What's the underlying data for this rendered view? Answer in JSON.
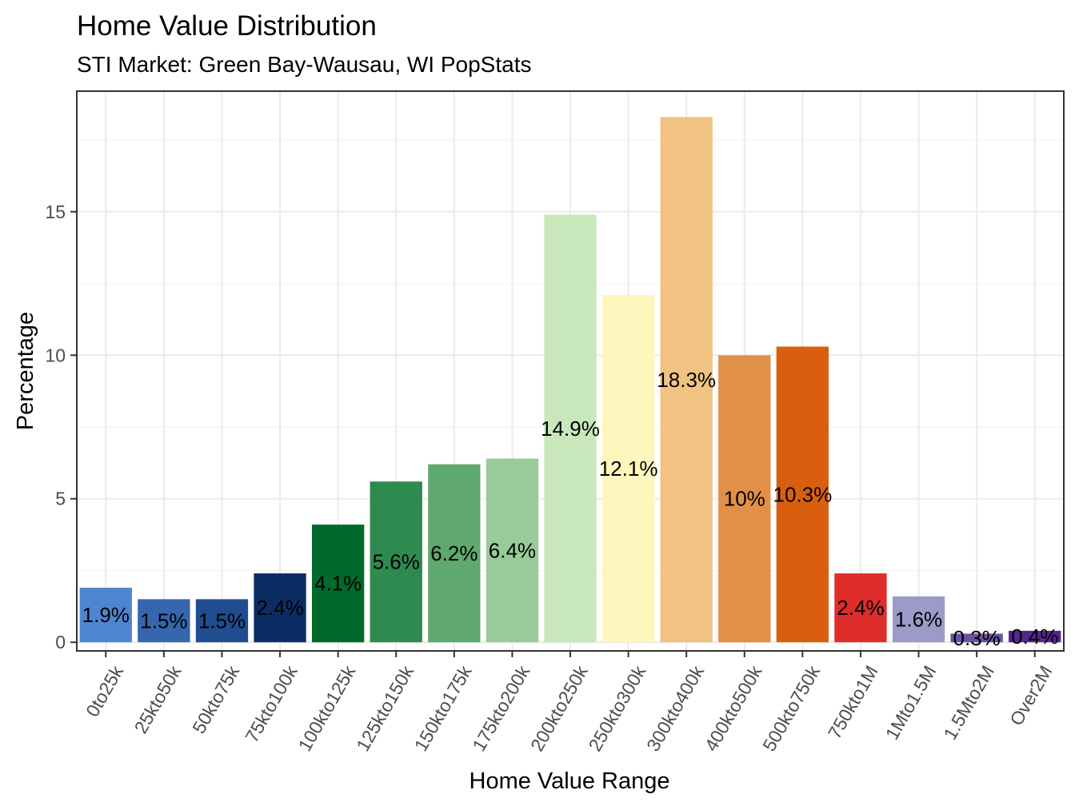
{
  "chart_data": {
    "type": "bar",
    "title": "Home Value Distribution",
    "subtitle": "STI Market: Green Bay-Wausau, WI PopStats",
    "xlabel": "Home Value Range",
    "ylabel": "Percentage",
    "ylim": [
      -0.3,
      19.2
    ],
    "yticks": [
      0,
      5,
      10,
      15
    ],
    "ytick_labels": [
      "0",
      "5",
      "10",
      "15"
    ],
    "grid": true,
    "legend": "none",
    "categories": [
      "0to25k",
      "25kto50k",
      "50kto75k",
      "75kto100k",
      "100kto125k",
      "125kto150k",
      "150kto175k",
      "175kto200k",
      "200kto250k",
      "250kto300k",
      "300kto400k",
      "400kto500k",
      "500kto750k",
      "750kto1M",
      "1Mto1.5M",
      "1.5Mto2M",
      "Over2M"
    ],
    "values": [
      1.9,
      1.5,
      1.5,
      2.4,
      4.1,
      5.6,
      6.2,
      6.4,
      14.9,
      12.1,
      18.3,
      10.0,
      10.3,
      2.4,
      1.6,
      0.3,
      0.4
    ],
    "labels": [
      "1.9%",
      "1.5%",
      "1.5%",
      "2.4%",
      "4.1%",
      "5.6%",
      "6.2%",
      "6.4%",
      "14.9%",
      "12.1%",
      "18.3%",
      "10%",
      "10.3%",
      "2.4%",
      "1.6%",
      "0.3%",
      "0.4%"
    ],
    "colors": [
      "#4f85cf",
      "#3566ae",
      "#1f4d8f",
      "#0c2d64",
      "#006a2c",
      "#2e8a4f",
      "#5fa86f",
      "#98cb97",
      "#c8e8bc",
      "#fff6bd",
      "#f0c383",
      "#e29047",
      "#d95f0e",
      "#de2d2b",
      "#9e9ac8",
      "#6a51a3",
      "#54278f"
    ]
  }
}
